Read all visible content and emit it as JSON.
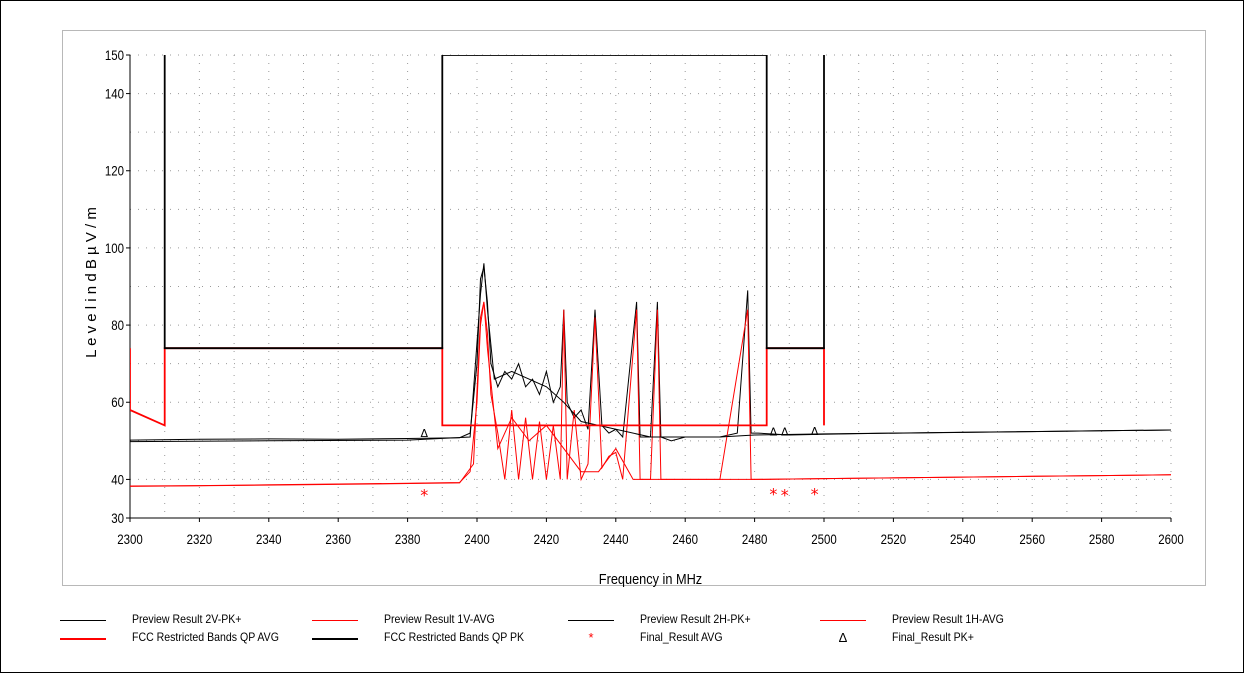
{
  "chart_data": {
    "type": "line",
    "xlabel": "Frequency in MHz",
    "ylabel": "L e v e l  i n  d B µ V / m",
    "xlim": [
      2300,
      2600
    ],
    "ylim": [
      30,
      150
    ],
    "x_ticks": [
      2300,
      2320,
      2340,
      2360,
      2380,
      2400,
      2420,
      2440,
      2460,
      2480,
      2500,
      2520,
      2540,
      2560,
      2580,
      2600
    ],
    "y_ticks": [
      30,
      40,
      60,
      80,
      100,
      120,
      140,
      150
    ],
    "grid": true,
    "legend_position": "bottom",
    "series": [
      {
        "name": "Preview Result 2V-PK+",
        "kind": "line",
        "color": "#000000",
        "points": [
          [
            2300,
            50.2
          ],
          [
            2320,
            50.4
          ],
          [
            2340,
            50.5
          ],
          [
            2360,
            50.4
          ],
          [
            2380,
            50.6
          ],
          [
            2395,
            50.8
          ],
          [
            2398,
            52
          ],
          [
            2400,
            70
          ],
          [
            2401,
            92
          ],
          [
            2402,
            95
          ],
          [
            2403,
            86
          ],
          [
            2404,
            70
          ],
          [
            2406,
            64
          ],
          [
            2408,
            68
          ],
          [
            2410,
            66
          ],
          [
            2412,
            70
          ],
          [
            2414,
            64
          ],
          [
            2416,
            66
          ],
          [
            2418,
            62
          ],
          [
            2420,
            68
          ],
          [
            2422,
            60
          ],
          [
            2424,
            64
          ],
          [
            2425,
            84
          ],
          [
            2426,
            60
          ],
          [
            2428,
            56
          ],
          [
            2430,
            58
          ],
          [
            2432,
            53
          ],
          [
            2434,
            84
          ],
          [
            2436,
            54
          ],
          [
            2438,
            52
          ],
          [
            2440,
            53
          ],
          [
            2442,
            51
          ],
          [
            2446,
            86
          ],
          [
            2447,
            51
          ],
          [
            2450,
            51
          ],
          [
            2452,
            86
          ],
          [
            2453,
            51
          ],
          [
            2456,
            50
          ],
          [
            2460,
            51
          ],
          [
            2465,
            51
          ],
          [
            2470,
            51
          ],
          [
            2475,
            52
          ],
          [
            2478,
            89
          ],
          [
            2479,
            52
          ],
          [
            2481,
            52
          ],
          [
            2490,
            51.5
          ],
          [
            2500,
            51.7
          ],
          [
            2520,
            52
          ],
          [
            2540,
            52.2
          ],
          [
            2560,
            52.4
          ],
          [
            2580,
            52.6
          ],
          [
            2600,
            52.8
          ]
        ]
      },
      {
        "name": "Preview Result 1V-AVG",
        "kind": "line",
        "color": "#ff0000",
        "points": [
          [
            2300,
            38.3
          ],
          [
            2320,
            38.4
          ],
          [
            2340,
            38.6
          ],
          [
            2360,
            38.8
          ],
          [
            2380,
            39.0
          ],
          [
            2395,
            39.2
          ],
          [
            2398,
            42
          ],
          [
            2400,
            60
          ],
          [
            2401,
            80
          ],
          [
            2402,
            86
          ],
          [
            2403,
            78
          ],
          [
            2404,
            62
          ],
          [
            2406,
            52
          ],
          [
            2408,
            40
          ],
          [
            2410,
            58
          ],
          [
            2412,
            40
          ],
          [
            2414,
            56
          ],
          [
            2416,
            40
          ],
          [
            2418,
            55
          ],
          [
            2420,
            40
          ],
          [
            2422,
            54
          ],
          [
            2424,
            40
          ],
          [
            2425,
            84
          ],
          [
            2426,
            40
          ],
          [
            2428,
            58
          ],
          [
            2430,
            40
          ],
          [
            2432,
            44
          ],
          [
            2434,
            82
          ],
          [
            2436,
            43
          ],
          [
            2438,
            46
          ],
          [
            2440,
            47
          ],
          [
            2442,
            40
          ],
          [
            2446,
            84
          ],
          [
            2447,
            40
          ],
          [
            2450,
            40
          ],
          [
            2452,
            84
          ],
          [
            2453,
            40
          ],
          [
            2456,
            40
          ],
          [
            2460,
            40
          ],
          [
            2470,
            40
          ],
          [
            2478,
            84
          ],
          [
            2479,
            40
          ],
          [
            2481,
            40
          ],
          [
            2500,
            40.2
          ],
          [
            2520,
            40.4
          ],
          [
            2540,
            40.6
          ],
          [
            2560,
            40.8
          ],
          [
            2580,
            41.0
          ],
          [
            2600,
            41.2
          ]
        ]
      },
      {
        "name": "Preview Result 2H-PK+",
        "kind": "line",
        "color": "#000000",
        "points": [
          [
            2300,
            49.8
          ],
          [
            2340,
            50.0
          ],
          [
            2380,
            50.2
          ],
          [
            2398,
            51
          ],
          [
            2401,
            88
          ],
          [
            2402,
            96
          ],
          [
            2403,
            84
          ],
          [
            2405,
            66
          ],
          [
            2410,
            68
          ],
          [
            2415,
            66
          ],
          [
            2420,
            64
          ],
          [
            2425,
            60
          ],
          [
            2430,
            55
          ],
          [
            2435,
            54
          ],
          [
            2440,
            53
          ],
          [
            2450,
            51
          ],
          [
            2460,
            51
          ],
          [
            2470,
            51
          ],
          [
            2480,
            51.5
          ],
          [
            2500,
            51.8
          ],
          [
            2550,
            52.3
          ],
          [
            2600,
            52.8
          ]
        ]
      },
      {
        "name": "Preview Result 1H-AVG",
        "kind": "line",
        "color": "#ff0000",
        "points": [
          [
            2300,
            38.2
          ],
          [
            2350,
            38.6
          ],
          [
            2395,
            39.1
          ],
          [
            2399,
            44
          ],
          [
            2401,
            82
          ],
          [
            2402,
            86
          ],
          [
            2403,
            74
          ],
          [
            2406,
            48
          ],
          [
            2410,
            56
          ],
          [
            2415,
            50
          ],
          [
            2420,
            54
          ],
          [
            2425,
            48
          ],
          [
            2430,
            42
          ],
          [
            2435,
            42
          ],
          [
            2440,
            48
          ],
          [
            2445,
            40
          ],
          [
            2460,
            40
          ],
          [
            2480,
            40
          ],
          [
            2500,
            40.2
          ],
          [
            2550,
            40.7
          ],
          [
            2600,
            41.2
          ]
        ]
      },
      {
        "name": "FCC Restricted Bands QP AVG",
        "kind": "limit",
        "color": "#ff0000",
        "points": [
          [
            2300,
            74
          ],
          [
            2300,
            58
          ],
          [
            2310,
            54
          ],
          [
            2310,
            74
          ],
          [
            2390,
            74
          ],
          [
            2390,
            54
          ],
          [
            2483.5,
            54
          ],
          [
            2483.5,
            74
          ],
          [
            2500,
            74
          ],
          [
            2500,
            54
          ]
        ]
      },
      {
        "name": "FCC Restricted Bands QP PK",
        "kind": "limit",
        "color": "#000000",
        "points": [
          [
            2310,
            150
          ],
          [
            2310,
            74
          ],
          [
            2390,
            74
          ],
          [
            2390,
            150
          ],
          [
            2483.5,
            150
          ],
          [
            2483.5,
            74
          ],
          [
            2500,
            74
          ],
          [
            2500,
            150
          ]
        ]
      },
      {
        "name": "Final_Result AVG",
        "kind": "marker",
        "color": "#ff0000",
        "symbol": "*",
        "points": [
          [
            2384.8,
            36.3
          ],
          [
            2485.4,
            36.6
          ],
          [
            2488.7,
            36.3
          ],
          [
            2497.3,
            36.6
          ]
        ]
      },
      {
        "name": "Final_Result PK+",
        "kind": "marker",
        "color": "#000000",
        "symbol": "Δ",
        "points": [
          [
            2384.8,
            52.0
          ],
          [
            2485.4,
            52.4
          ],
          [
            2488.7,
            52.4
          ],
          [
            2497.3,
            52.6
          ]
        ]
      }
    ]
  },
  "legend": [
    {
      "label": "Preview Result 2V-PK+",
      "color": "#000000",
      "symbol": "line"
    },
    {
      "label": "Preview Result 1V-AVG",
      "color": "#ff0000",
      "symbol": "line"
    },
    {
      "label": "Preview Result 2H-PK+",
      "color": "#000000",
      "symbol": "line"
    },
    {
      "label": "Preview Result 1H-AVG",
      "color": "#ff0000",
      "symbol": "line"
    },
    {
      "label": "FCC Restricted Bands QP AVG",
      "color": "#ff0000",
      "symbol": "thick-line"
    },
    {
      "label": "FCC Restricted Bands QP PK",
      "color": "#000000",
      "symbol": "thick-line"
    },
    {
      "label": "Final_Result AVG",
      "color": "#ff0000",
      "symbol": "*"
    },
    {
      "label": "Final_Result PK+",
      "color": "#000000",
      "symbol": "Δ"
    }
  ]
}
